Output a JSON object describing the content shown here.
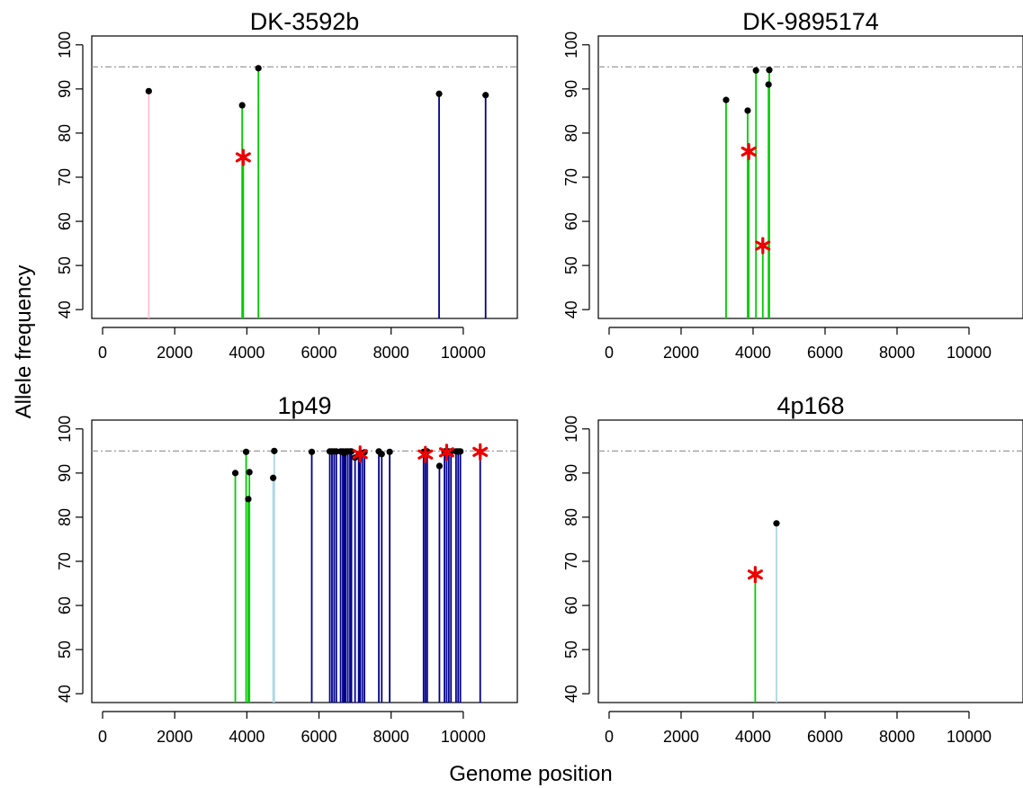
{
  "figure": {
    "ylabel": "Allele frequency",
    "xlabel": "Genome position"
  },
  "chart_data": [
    {
      "type": "lollipop",
      "title": "DK-3592b",
      "xlim": [
        -300,
        11500
      ],
      "ylim": [
        38,
        102
      ],
      "x_ticks": [
        0,
        2000,
        4000,
        6000,
        8000,
        10000
      ],
      "y_ticks": [
        40,
        50,
        60,
        70,
        80,
        90,
        100
      ],
      "reference_line": 95,
      "lollipops": [
        {
          "x": 1280,
          "y": 89.5,
          "color": "#ffc0cb"
        },
        {
          "x": 3870,
          "y": 86.3,
          "color": "#00cc00"
        },
        {
          "x": 3900,
          "y": 74.5,
          "color": "#00cc00"
        },
        {
          "x": 4320,
          "y": 94.7,
          "color": "#00cc00"
        },
        {
          "x": 9330,
          "y": 88.9,
          "color": "#00008b"
        },
        {
          "x": 10620,
          "y": 88.6,
          "color": "#00008b"
        }
      ],
      "stars": [
        {
          "x": 3900,
          "y": 74.5
        }
      ]
    },
    {
      "type": "lollipop",
      "title": "DK-9895174",
      "xlim": [
        -300,
        11500
      ],
      "ylim": [
        38,
        102
      ],
      "x_ticks": [
        0,
        2000,
        4000,
        6000,
        8000,
        10000
      ],
      "y_ticks": [
        40,
        50,
        60,
        70,
        80,
        90,
        100
      ],
      "reference_line": 95,
      "lollipops": [
        {
          "x": 3250,
          "y": 87.5,
          "color": "#00cc00"
        },
        {
          "x": 3850,
          "y": 85.1,
          "color": "#00cc00"
        },
        {
          "x": 3880,
          "y": 75.8,
          "color": "#00cc00"
        },
        {
          "x": 4080,
          "y": 94.2,
          "color": "#00cc00"
        },
        {
          "x": 4270,
          "y": 54.5,
          "color": "#00cc00"
        },
        {
          "x": 4430,
          "y": 91.0,
          "color": "#00cc00"
        },
        {
          "x": 4450,
          "y": 94.3,
          "color": "#00cc00"
        }
      ],
      "stars": [
        {
          "x": 3880,
          "y": 75.8
        },
        {
          "x": 4270,
          "y": 54.5
        }
      ]
    },
    {
      "type": "lollipop",
      "title": "1p49",
      "xlim": [
        -300,
        11500
      ],
      "ylim": [
        38,
        102
      ],
      "x_ticks": [
        0,
        2000,
        4000,
        6000,
        8000,
        10000
      ],
      "y_ticks": [
        40,
        50,
        60,
        70,
        80,
        90,
        100
      ],
      "reference_line": 95,
      "lollipops": [
        {
          "x": 3680,
          "y": 90.0,
          "color": "#00cc00"
        },
        {
          "x": 3980,
          "y": 94.8,
          "color": "#00cc00"
        },
        {
          "x": 4040,
          "y": 84.1,
          "color": "#00cc00"
        },
        {
          "x": 4070,
          "y": 90.2,
          "color": "#00cc00"
        },
        {
          "x": 4730,
          "y": 88.9,
          "color": "#add8e6"
        },
        {
          "x": 4760,
          "y": 95.0,
          "color": "#add8e6"
        },
        {
          "x": 5800,
          "y": 94.8,
          "color": "#00008b"
        },
        {
          "x": 6300,
          "y": 94.9,
          "color": "#00008b"
        },
        {
          "x": 6360,
          "y": 94.9,
          "color": "#00008b"
        },
        {
          "x": 6420,
          "y": 94.9,
          "color": "#00008b"
        },
        {
          "x": 6480,
          "y": 94.9,
          "color": "#00008b"
        },
        {
          "x": 6600,
          "y": 94.9,
          "color": "#00008b"
        },
        {
          "x": 6660,
          "y": 94.9,
          "color": "#00008b"
        },
        {
          "x": 6700,
          "y": 94.5,
          "color": "#00008b"
        },
        {
          "x": 6740,
          "y": 94.9,
          "color": "#00008b"
        },
        {
          "x": 6800,
          "y": 94.9,
          "color": "#00008b"
        },
        {
          "x": 6860,
          "y": 94.9,
          "color": "#00008b"
        },
        {
          "x": 6900,
          "y": 94.9,
          "color": "#00008b"
        },
        {
          "x": 7000,
          "y": 93.5,
          "color": "#00008b"
        },
        {
          "x": 7100,
          "y": 94.0,
          "color": "#00008b"
        },
        {
          "x": 7140,
          "y": 94.3,
          "color": "#00008b"
        },
        {
          "x": 7200,
          "y": 94.5,
          "color": "#00008b"
        },
        {
          "x": 7260,
          "y": 94.7,
          "color": "#00008b"
        },
        {
          "x": 7660,
          "y": 94.9,
          "color": "#00008b"
        },
        {
          "x": 7740,
          "y": 94.3,
          "color": "#00008b"
        },
        {
          "x": 7960,
          "y": 94.8,
          "color": "#00008b"
        },
        {
          "x": 8900,
          "y": 94.8,
          "color": "#00008b"
        },
        {
          "x": 8950,
          "y": 94.2,
          "color": "#00008b"
        },
        {
          "x": 9000,
          "y": 94.9,
          "color": "#00008b"
        },
        {
          "x": 9340,
          "y": 91.6,
          "color": "#00008b"
        },
        {
          "x": 9480,
          "y": 94.9,
          "color": "#00008b"
        },
        {
          "x": 9540,
          "y": 94.7,
          "color": "#00008b"
        },
        {
          "x": 9600,
          "y": 94.9,
          "color": "#00008b"
        },
        {
          "x": 9660,
          "y": 94.9,
          "color": "#00008b"
        },
        {
          "x": 9800,
          "y": 94.9,
          "color": "#00008b"
        },
        {
          "x": 9860,
          "y": 94.9,
          "color": "#00008b"
        },
        {
          "x": 9920,
          "y": 94.9,
          "color": "#00008b"
        },
        {
          "x": 10470,
          "y": 94.8,
          "color": "#00008b"
        }
      ],
      "stars": [
        {
          "x": 7140,
          "y": 94.3
        },
        {
          "x": 8950,
          "y": 94.2
        },
        {
          "x": 9540,
          "y": 94.7
        },
        {
          "x": 10470,
          "y": 94.8
        }
      ]
    },
    {
      "type": "lollipop",
      "title": "4p168",
      "xlim": [
        -300,
        11500
      ],
      "ylim": [
        38,
        102
      ],
      "x_ticks": [
        0,
        2000,
        4000,
        6000,
        8000,
        10000
      ],
      "y_ticks": [
        40,
        50,
        60,
        70,
        80,
        90,
        100
      ],
      "reference_line": 95,
      "lollipops": [
        {
          "x": 4060,
          "y": 67.0,
          "color": "#00cc00"
        },
        {
          "x": 4650,
          "y": 78.6,
          "color": "#add8e6"
        }
      ],
      "stars": [
        {
          "x": 4060,
          "y": 67.0
        }
      ]
    }
  ]
}
